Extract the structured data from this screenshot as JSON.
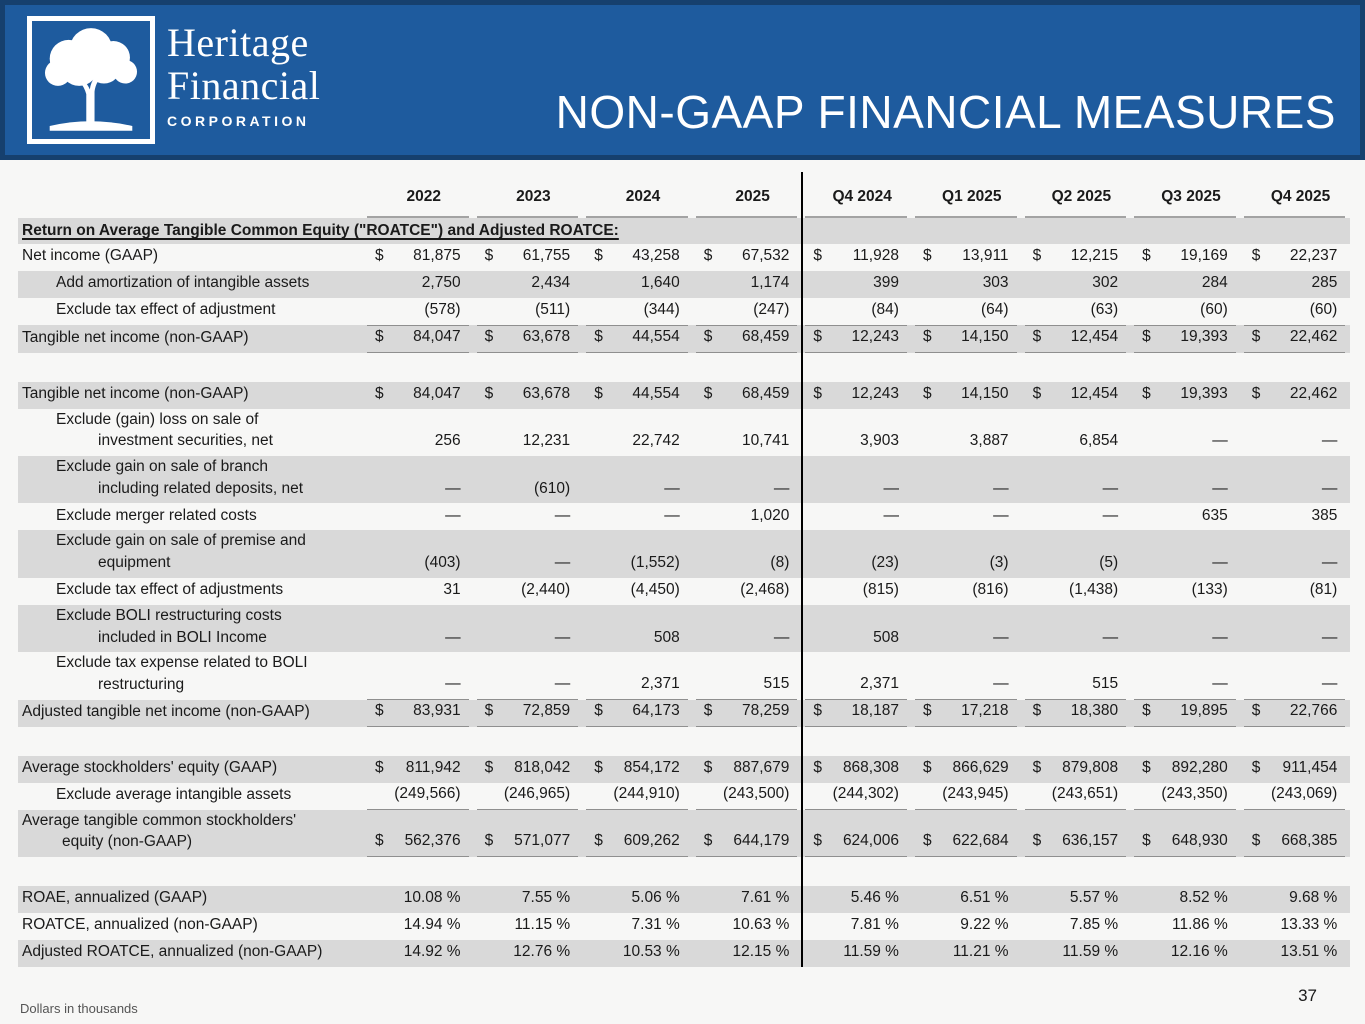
{
  "header": {
    "logo_name_line1": "Heritage",
    "logo_name_line2": "Financial",
    "logo_subtitle": "CORPORATION",
    "title": "NON-GAAP FINANCIAL MEASURES"
  },
  "colors": {
    "banner_blue": "#1e5b9e",
    "banner_border_navy": "#16406e",
    "row_shade_gray": "#d9d9d9",
    "rule_gray": "#8f8f8f",
    "divider_black": "#000000",
    "page_background": "#f7f7f6"
  },
  "table": {
    "columns": [
      "2022",
      "2023",
      "2024",
      "2025",
      "Q4 2024",
      "Q1 2025",
      "Q2 2025",
      "Q3 2025",
      "Q4 2025"
    ],
    "rows": [
      {
        "type": "section",
        "shade": true,
        "label": "Return on Average Tangible Common Equity (\"ROATCE\") and Adjusted ROATCE:"
      },
      {
        "type": "data",
        "label": "Net income (GAAP)",
        "indent": 0,
        "shade": false,
        "dollar": true,
        "values": [
          "81,875",
          "61,755",
          "43,258",
          "67,532",
          "11,928",
          "13,911",
          "12,215",
          "19,169",
          "22,237"
        ]
      },
      {
        "type": "data",
        "label": "Add amortization of intangible assets",
        "indent": 1,
        "shade": true,
        "dollar": false,
        "values": [
          "2,750",
          "2,434",
          "1,640",
          "1,174",
          "399",
          "303",
          "302",
          "284",
          "285"
        ]
      },
      {
        "type": "data",
        "label": "Exclude tax effect of adjustment",
        "indent": 1,
        "shade": false,
        "dollar": false,
        "values": [
          "(578)",
          "(511)",
          "(344)",
          "(247)",
          "(84)",
          "(64)",
          "(63)",
          "(60)",
          "(60)"
        ]
      },
      {
        "type": "data",
        "label": "Tangible net income (non-GAAP)",
        "indent": 0,
        "shade": true,
        "dollar": true,
        "border": "tb",
        "values": [
          "84,047",
          "63,678",
          "44,554",
          "68,459",
          "12,243",
          "14,150",
          "12,454",
          "19,393",
          "22,462"
        ]
      },
      {
        "type": "spacer"
      },
      {
        "type": "data",
        "label": "Tangible net income (non-GAAP)",
        "indent": 0,
        "shade": true,
        "dollar": true,
        "values": [
          "84,047",
          "63,678",
          "44,554",
          "68,459",
          "12,243",
          "14,150",
          "12,454",
          "19,393",
          "22,462"
        ]
      },
      {
        "type": "data",
        "label": "Exclude (gain) loss on sale of\ninvestment securities, net",
        "indent": 1,
        "shade": false,
        "dollar": false,
        "values": [
          "256",
          "12,231",
          "22,742",
          "10,741",
          "3,903",
          "3,887",
          "6,854",
          "—",
          "—"
        ]
      },
      {
        "type": "data",
        "label": "Exclude gain on sale of branch\nincluding related deposits, net",
        "indent": 1,
        "shade": true,
        "dollar": false,
        "values": [
          "—",
          "(610)",
          "—",
          "—",
          "—",
          "—",
          "—",
          "—",
          "—"
        ]
      },
      {
        "type": "data",
        "label": "Exclude merger related costs",
        "indent": 1,
        "shade": false,
        "dollar": false,
        "values": [
          "—",
          "—",
          "—",
          "1,020",
          "—",
          "—",
          "—",
          "635",
          "385"
        ]
      },
      {
        "type": "data",
        "label": "Exclude gain on sale of premise and\nequipment",
        "indent": 1,
        "shade": true,
        "dollar": false,
        "values": [
          "(403)",
          "—",
          "(1,552)",
          "(8)",
          "(23)",
          "(3)",
          "(5)",
          "—",
          "—"
        ]
      },
      {
        "type": "data",
        "label": "Exclude tax effect of adjustments",
        "indent": 1,
        "shade": false,
        "dollar": false,
        "values": [
          "31",
          "(2,440)",
          "(4,450)",
          "(2,468)",
          "(815)",
          "(816)",
          "(1,438)",
          "(133)",
          "(81)"
        ]
      },
      {
        "type": "data",
        "label": "Exclude BOLI restructuring costs\nincluded in BOLI Income",
        "indent": 1,
        "shade": true,
        "dollar": false,
        "values": [
          "—",
          "—",
          "508",
          "—",
          "508",
          "—",
          "—",
          "—",
          "—"
        ]
      },
      {
        "type": "data",
        "label": "Exclude tax expense related to BOLI\nrestructuring",
        "indent": 1,
        "shade": false,
        "dollar": false,
        "border": "b",
        "values": [
          "—",
          "—",
          "2,371",
          "515",
          "2,371",
          "—",
          "515",
          "—",
          "—"
        ]
      },
      {
        "type": "data",
        "label": "Adjusted tangible net income (non-GAAP)",
        "indent": 0,
        "shade": true,
        "dollar": true,
        "border": "b",
        "values": [
          "83,931",
          "72,859",
          "64,173",
          "78,259",
          "18,187",
          "17,218",
          "18,380",
          "19,895",
          "22,766"
        ]
      },
      {
        "type": "spacer"
      },
      {
        "type": "data",
        "label": "Average stockholders' equity (GAAP)",
        "indent": 0,
        "shade": true,
        "dollar": true,
        "values": [
          "811,942",
          "818,042",
          "854,172",
          "887,679",
          "868,308",
          "866,629",
          "879,808",
          "892,280",
          "911,454"
        ]
      },
      {
        "type": "data",
        "label": "Exclude average intangible assets",
        "indent": 1,
        "shade": false,
        "dollar": false,
        "border": "b",
        "values": [
          "(249,566)",
          "(246,965)",
          "(244,910)",
          "(243,500)",
          "(244,302)",
          "(243,945)",
          "(243,651)",
          "(243,350)",
          "(243,069)"
        ]
      },
      {
        "type": "data",
        "label": "Average tangible common stockholders'\nequity (non-GAAP)",
        "indent": 0,
        "shade": true,
        "dollar": true,
        "border": "b",
        "values": [
          "562,376",
          "571,077",
          "609,262",
          "644,179",
          "624,006",
          "622,684",
          "636,157",
          "648,930",
          "668,385"
        ]
      },
      {
        "type": "spacer"
      },
      {
        "type": "data",
        "label": "ROAE, annualized (GAAP)",
        "indent": 0,
        "shade": true,
        "dollar": false,
        "values": [
          "10.08 %",
          "7.55 %",
          "5.06 %",
          "7.61 %",
          "5.46 %",
          "6.51 %",
          "5.57 %",
          "8.52 %",
          "9.68 %"
        ]
      },
      {
        "type": "data",
        "label": "ROATCE, annualized (non-GAAP)",
        "indent": 0,
        "shade": false,
        "dollar": false,
        "values": [
          "14.94 %",
          "11.15 %",
          "7.31 %",
          "10.63 %",
          "7.81 %",
          "9.22 %",
          "7.85 %",
          "11.86 %",
          "13.33 %"
        ]
      },
      {
        "type": "data",
        "label": "Adjusted ROATCE, annualized (non-GAAP)",
        "indent": 0,
        "shade": true,
        "dollar": false,
        "values": [
          "14.92 %",
          "12.76 %",
          "10.53 %",
          "12.15 %",
          "11.59 %",
          "11.21 %",
          "11.59 %",
          "12.16 %",
          "13.51 %"
        ]
      }
    ]
  },
  "footer": {
    "note": "Dollars in thousands",
    "page_number": "37"
  }
}
